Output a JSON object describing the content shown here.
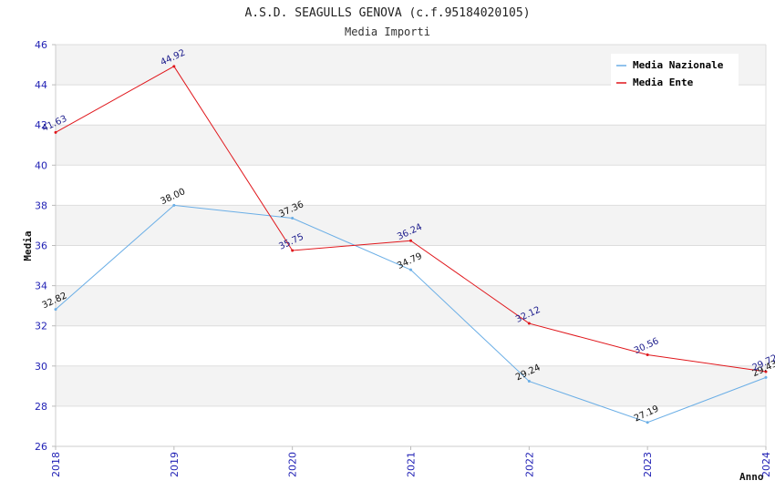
{
  "chart_data": {
    "type": "line",
    "title": "A.S.D. SEAGULLS GENOVA (c.f.95184020105)",
    "subtitle": "Media Importi",
    "xlabel": "Anno",
    "ylabel": "Media",
    "x": [
      "2018",
      "2019",
      "2020",
      "2021",
      "2022",
      "2023",
      "2024"
    ],
    "ylim": [
      26,
      46
    ],
    "yticks": [
      26,
      28,
      30,
      32,
      34,
      36,
      38,
      40,
      42,
      44,
      46
    ],
    "grid": true,
    "legend_position": "top-right",
    "series": [
      {
        "name": "Media Nazionale",
        "color": "#6aaee6",
        "label_color": "#111111",
        "values": [
          32.82,
          38.0,
          37.36,
          34.79,
          29.24,
          27.19,
          29.43
        ],
        "labels": [
          "32.82",
          "38.00",
          "37.36",
          "34.79",
          "29.24",
          "27.19",
          "29.43"
        ]
      },
      {
        "name": "Media Ente",
        "color": "#e0161b",
        "label_color": "#1c1c8c",
        "values": [
          41.63,
          44.92,
          35.75,
          36.24,
          32.12,
          30.56,
          29.72
        ],
        "labels": [
          "41.63",
          "44.92",
          "35.75",
          "36.24",
          "32.12",
          "30.56",
          "29.72"
        ]
      }
    ]
  }
}
